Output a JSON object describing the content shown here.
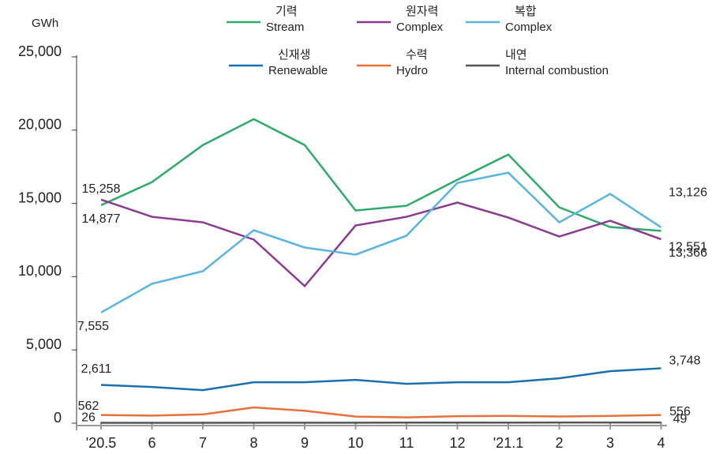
{
  "chart_data": {
    "type": "line",
    "y_label": "GWh",
    "categories": [
      "'20.5",
      "6",
      "7",
      "8",
      "9",
      "10",
      "11",
      "12",
      "'21.1",
      "2",
      "3",
      "4"
    ],
    "ylim": [
      0,
      25000
    ],
    "yticks": [
      0,
      {
        "value": 5000,
        "label": "5,000"
      },
      {
        "value": 10000,
        "label": "10,000"
      },
      {
        "value": 15000,
        "label": "15,000"
      },
      {
        "value": 20000,
        "label": "20,000"
      },
      {
        "value": 25000,
        "label": "25,000"
      }
    ],
    "series": [
      {
        "name": "기력",
        "name_en": "Stream",
        "color": "#2eaa6a",
        "values": [
          14877,
          16450,
          18980,
          20750,
          18980,
          14516,
          14840,
          16613,
          18333,
          14730,
          13387,
          13126
        ],
        "value_labels": [
          "14,877",
          null,
          null,
          null,
          null,
          null,
          null,
          null,
          null,
          null,
          null,
          "13,126"
        ]
      },
      {
        "name": "원자력",
        "name_en": "Complex",
        "color": "#8b3a8f",
        "values": [
          15258,
          14086,
          13710,
          12527,
          9355,
          13495,
          14086,
          15054,
          14032,
          12742,
          13817,
          12551
        ],
        "value_labels": [
          "15,258",
          null,
          null,
          null,
          null,
          null,
          null,
          null,
          null,
          null,
          null,
          "12,551"
        ]
      },
      {
        "name": "복합",
        "name_en": "Complex",
        "color": "#5ab4e0",
        "values": [
          7555,
          9516,
          10376,
          13172,
          11989,
          11505,
          12796,
          16398,
          17097,
          13710,
          15645,
          13366
        ],
        "value_labels": [
          "7,555",
          null,
          null,
          null,
          null,
          null,
          null,
          null,
          null,
          null,
          null,
          "13,366"
        ]
      },
      {
        "name": "신재생",
        "name_en": "Renewable",
        "color": "#1a6fae",
        "values": [
          2611,
          2473,
          2258,
          2796,
          2796,
          2957,
          2688,
          2796,
          2796,
          3065,
          3548,
          3748
        ],
        "value_labels": [
          "2,611",
          null,
          null,
          null,
          null,
          null,
          null,
          null,
          null,
          null,
          null,
          "3,748"
        ]
      },
      {
        "name": "수력",
        "name_en": "Hydro",
        "color": "#e8703a",
        "values": [
          562,
          520,
          600,
          1075,
          850,
          450,
          400,
          480,
          500,
          460,
          500,
          556
        ]
      },
      {
        "name": "내연",
        "name_en": "Internal combustion",
        "color": "#555555",
        "values": [
          26,
          28,
          30,
          32,
          34,
          36,
          38,
          40,
          42,
          44,
          46,
          49
        ]
      }
    ]
  }
}
